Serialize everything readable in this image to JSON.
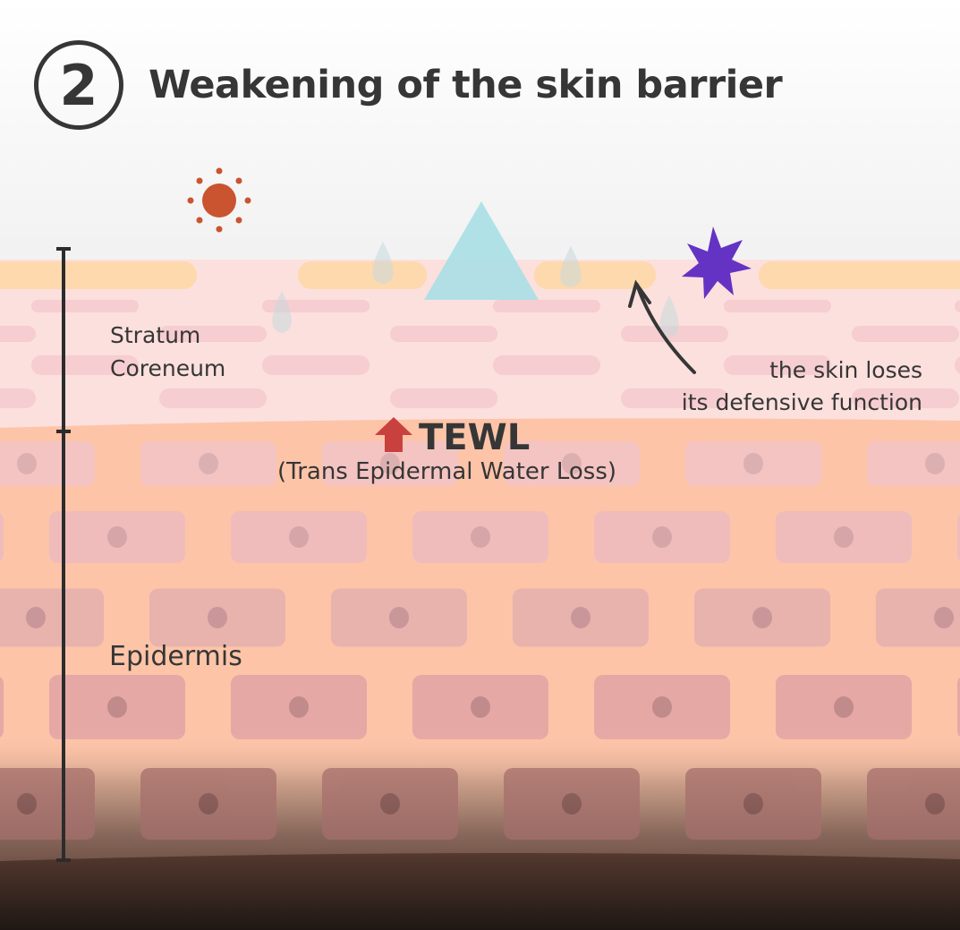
{
  "header": {
    "step_number": "2",
    "title": "Weakening of the skin barrier"
  },
  "labels": {
    "stratum_line1": "Stratum",
    "stratum_line2": "Coreneum",
    "epidermis": "Epidermis",
    "tewl": "TEWL",
    "tewl_full": "(Trans Epidermal Water Loss)",
    "annotation_line1": "the skin loses",
    "annotation_line2": "its defensive function"
  },
  "icons": [
    "sun-icon",
    "triangle-irritant-icon",
    "star-allergen-icon",
    "water-drop-icon",
    "arrow-up-icon",
    "curved-arrow-icon"
  ],
  "colors": {
    "sun": "#c9542f",
    "irritant": "#a8dfe6",
    "allergen": "#6433c4",
    "tewl_arrow": "#c9413f",
    "text": "#363636",
    "lipid": "#fdd9ad",
    "stratum": "#fbe0dd",
    "epidermis": "#fdc4a8"
  }
}
